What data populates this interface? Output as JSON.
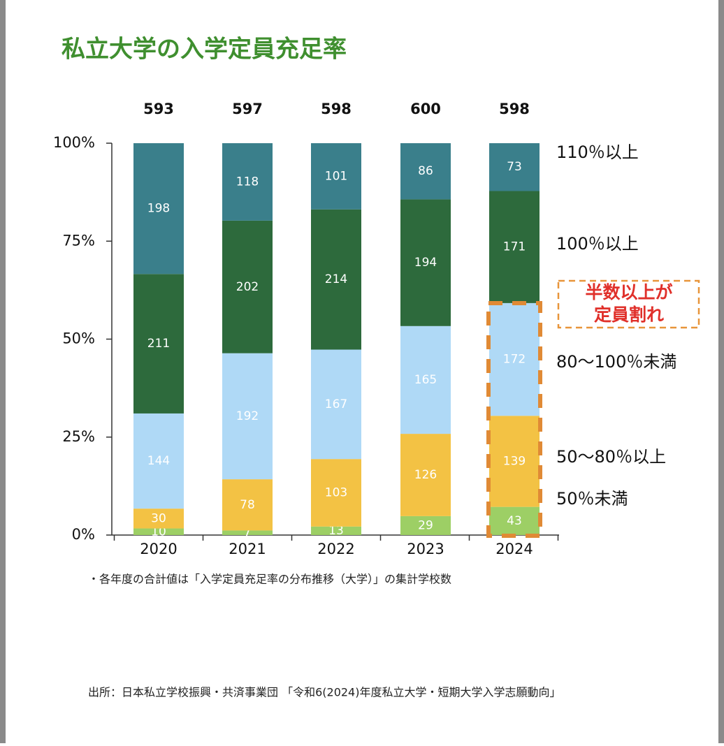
{
  "chart_data": {
    "type": "bar",
    "stacking": "percent",
    "title": "私立大学の入学定員充足率",
    "categories": [
      "2020",
      "2021",
      "2022",
      "2023",
      "2024"
    ],
    "totals": [
      593,
      597,
      598,
      600,
      598
    ],
    "series": [
      {
        "name": "50％未満",
        "color": "#9dcf65",
        "values": [
          10,
          7,
          13,
          29,
          43
        ]
      },
      {
        "name": "50〜80％以上",
        "color": "#f3c244",
        "values": [
          30,
          78,
          103,
          126,
          139
        ]
      },
      {
        "name": "80〜100％未満",
        "color": "#afd9f6",
        "values": [
          144,
          192,
          167,
          165,
          172
        ]
      },
      {
        "name": "100％以上",
        "color": "#2d6a3c",
        "values": [
          211,
          202,
          214,
          194,
          171
        ]
      },
      {
        "name": "110％以上",
        "color": "#3a7f8b",
        "values": [
          198,
          118,
          101,
          86,
          73
        ]
      }
    ],
    "ylim": [
      0,
      100
    ],
    "yticks": [
      {
        "value": 0,
        "label": "0%"
      },
      {
        "value": 25,
        "label": "25%"
      },
      {
        "value": 50,
        "label": "50%"
      },
      {
        "value": 75,
        "label": "75%"
      },
      {
        "value": 100,
        "label": "100%"
      }
    ],
    "callout": "半数以上が定員割れ",
    "note": "・各年度の合計値は「入学定員充足率の分布推移（大学）」の集計学校数",
    "source": "出所：日本私立学校振興・共済事業団 「令和6(2024)年度私立大学・短期大学入学志願動向」"
  }
}
